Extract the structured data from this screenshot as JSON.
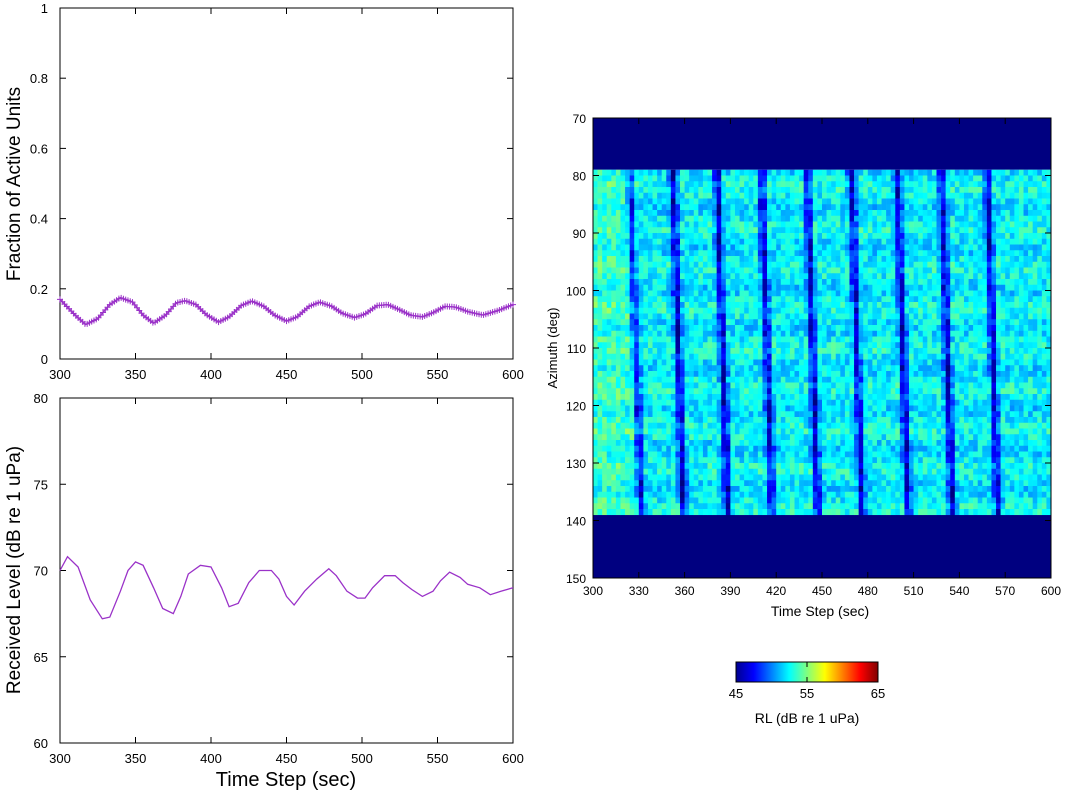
{
  "colors": {
    "line_color": "#9a32c8",
    "marker_color": "#9a32c8",
    "colormap": "jet",
    "below_range_color": "#000080"
  },
  "chart_data": [
    {
      "type": "line",
      "xlabel": "",
      "ylabel": "Fraction of Active Units",
      "xlim": [
        300,
        600
      ],
      "ylim": [
        0,
        1
      ],
      "xticks": [
        300,
        350,
        400,
        450,
        500,
        550,
        600
      ],
      "yticks": [
        0,
        0.2,
        0.4,
        0.6,
        0.8,
        1
      ],
      "ytick_labels": [
        "0",
        "0.2",
        "0.4",
        "0.6",
        "0.8",
        "1"
      ],
      "markers": "plus",
      "x": [
        300,
        310,
        317,
        325,
        333,
        340,
        348,
        355,
        362,
        370,
        377,
        383,
        390,
        397,
        405,
        412,
        420,
        427,
        435,
        442,
        450,
        457,
        465,
        472,
        480,
        487,
        495,
        502,
        510,
        517,
        525,
        532,
        540,
        547,
        555,
        562,
        570,
        580,
        590,
        600
      ],
      "y": [
        0.17,
        0.125,
        0.098,
        0.115,
        0.155,
        0.175,
        0.162,
        0.125,
        0.102,
        0.125,
        0.16,
        0.166,
        0.155,
        0.126,
        0.105,
        0.12,
        0.152,
        0.165,
        0.15,
        0.125,
        0.108,
        0.12,
        0.15,
        0.162,
        0.15,
        0.13,
        0.118,
        0.128,
        0.152,
        0.155,
        0.14,
        0.125,
        0.12,
        0.132,
        0.15,
        0.148,
        0.135,
        0.125,
        0.138,
        0.155
      ]
    },
    {
      "type": "line",
      "xlabel": "Time Step (sec)",
      "ylabel": "Received Level (dB re 1 uPa)",
      "xlim": [
        300,
        600
      ],
      "ylim": [
        60,
        80
      ],
      "xticks": [
        300,
        350,
        400,
        450,
        500,
        550,
        600
      ],
      "yticks": [
        60,
        65,
        70,
        75,
        80
      ],
      "x": [
        300,
        305,
        312,
        320,
        328,
        333,
        340,
        345,
        350,
        355,
        362,
        368,
        375,
        380,
        385,
        393,
        400,
        407,
        412,
        418,
        425,
        432,
        440,
        445,
        450,
        455,
        462,
        470,
        478,
        483,
        490,
        497,
        502,
        507,
        515,
        522,
        527,
        533,
        540,
        547,
        552,
        558,
        565,
        570,
        578,
        585,
        592,
        600
      ],
      "y": [
        70.0,
        70.8,
        70.2,
        68.3,
        67.2,
        67.3,
        68.8,
        70.0,
        70.5,
        70.3,
        69.0,
        67.8,
        67.5,
        68.5,
        69.8,
        70.3,
        70.2,
        69.0,
        67.9,
        68.1,
        69.3,
        70.0,
        70.0,
        69.5,
        68.5,
        68.0,
        68.8,
        69.5,
        70.1,
        69.7,
        68.8,
        68.4,
        68.4,
        69.0,
        69.7,
        69.7,
        69.3,
        68.9,
        68.5,
        68.8,
        69.4,
        69.9,
        69.6,
        69.2,
        69.0,
        68.6,
        68.8,
        69.0
      ]
    },
    {
      "type": "heatmap",
      "xlabel": "Time Step (sec)",
      "ylabel": "Azimuth (deg)",
      "xlim": [
        300,
        600
      ],
      "ylim": [
        70,
        150
      ],
      "y_inverted": true,
      "xticks": [
        300,
        330,
        360,
        390,
        420,
        450,
        480,
        510,
        540,
        570,
        600
      ],
      "yticks": [
        70,
        80,
        90,
        100,
        110,
        120,
        130,
        140,
        150
      ],
      "active_azimuth_range": [
        79,
        139
      ],
      "outside_range_level": 45,
      "dark_stripe_times": [
        328,
        356,
        385,
        414,
        444,
        473,
        503,
        532,
        562
      ],
      "level_range_db": [
        48,
        56
      ],
      "colorbar": {
        "label": "RL (dB re 1 uPa)",
        "range": [
          45,
          65
        ],
        "ticks": [
          45,
          55,
          65
        ]
      }
    }
  ]
}
